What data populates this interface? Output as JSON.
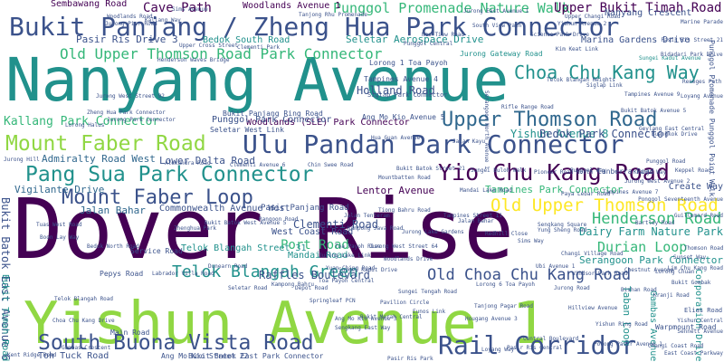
{
  "palette": {
    "purple": "#440154",
    "indigo": "#3b528b",
    "slate": "#31688e",
    "teal": "#21918c",
    "green": "#35b779",
    "lime": "#90d743",
    "yellow": "#fde725"
  },
  "words": [
    {
      "text": "Dover Rise",
      "color": "purple"
    },
    {
      "text": "Nanyang Avenue",
      "color": "teal"
    },
    {
      "text": "Yishun Avenue 1",
      "color": "lime"
    },
    {
      "text": "Bukit Panjang / Zheng Hua Park Connector",
      "color": "indigo"
    },
    {
      "text": "Ulu Pandan Park Connector",
      "color": "indigo"
    },
    {
      "text": "Pang Sua Park Connector",
      "color": "teal"
    },
    {
      "text": "Yio Chu Kang Road",
      "color": "purple"
    },
    {
      "text": "South Buona Vista Road",
      "color": "indigo"
    },
    {
      "text": "Rail Corridor",
      "color": "indigo"
    },
    {
      "text": "Mount Faber Road",
      "color": "lime"
    },
    {
      "text": "Upper Thomson Road",
      "color": "slate"
    },
    {
      "text": "Mount Faber Loop",
      "color": "indigo"
    },
    {
      "text": "Old Upper Thomson Road Park Connector",
      "color": "green"
    },
    {
      "text": "Old Upper Thomson Road",
      "color": "yellow"
    },
    {
      "text": "Choa Chu Kang Way",
      "color": "teal"
    },
    {
      "text": "Henderson Road",
      "color": "green"
    },
    {
      "text": "Telok Blangah Green",
      "color": "teal"
    },
    {
      "text": "Old Choa Chu Kang Road",
      "color": "indigo"
    },
    {
      "text": "Dairy Farm Nature Park",
      "color": "teal"
    },
    {
      "text": "Durian Loop",
      "color": "green"
    },
    {
      "text": "Kallang Park Connector",
      "color": "green"
    },
    {
      "text": "Cave Path",
      "color": "purple"
    },
    {
      "text": "Sembawang Road",
      "color": "purple"
    },
    {
      "text": "Punggol Promenade Nature Walk",
      "color": "green"
    },
    {
      "text": "Upper Bukit Timah Road",
      "color": "purple"
    },
    {
      "text": "Yishun Avenue 8",
      "color": "teal"
    },
    {
      "text": "Bedok Park Connector",
      "color": "indigo"
    },
    {
      "text": "Holland Road",
      "color": "indigo"
    },
    {
      "text": "Port Road",
      "color": "green"
    },
    {
      "text": "Clementi Road",
      "color": "indigo"
    },
    {
      "text": "Woodlands (SLE) Park Connector",
      "color": "purple"
    },
    {
      "text": "Mandai Road",
      "color": "teal"
    },
    {
      "text": "Raffles Boulevard",
      "color": "indigo"
    },
    {
      "text": "Toh Tuck Road",
      "color": "indigo"
    },
    {
      "text": "Jalan Bahar",
      "color": "slate"
    },
    {
      "text": "Vigilante Drive",
      "color": "slate"
    },
    {
      "text": "Admiralty Road West",
      "color": "slate"
    },
    {
      "text": "Lower Delta Road",
      "color": "indigo"
    },
    {
      "text": "Commonwealth Avenue West",
      "color": "indigo"
    },
    {
      "text": "Pasir Panjang Road",
      "color": "indigo"
    },
    {
      "text": "West Coast Road",
      "color": "indigo"
    },
    {
      "text": "Tampines Park Connector",
      "color": "green"
    },
    {
      "text": "Lentor Avenue",
      "color": "purple"
    },
    {
      "text": "Serangoon Park Connector",
      "color": "teal"
    },
    {
      "text": "Bukit Batok East Avenue 6",
      "color": "indigo"
    },
    {
      "text": "Punggol Park Connector",
      "color": "indigo"
    },
    {
      "text": "Woodlands Avenue 1",
      "color": "purple"
    },
    {
      "text": "Pasir Ris Drive 3",
      "color": "indigo"
    },
    {
      "text": "Bedok South Road",
      "color": "teal"
    },
    {
      "text": "Seletar Aerospace Drive",
      "color": "teal"
    },
    {
      "text": "Marina Gardens Drive",
      "color": "indigo"
    },
    {
      "text": "Nanyang Crescent",
      "color": "indigo"
    },
    {
      "text": "Lorong 1 Toa Payoh",
      "color": "indigo"
    },
    {
      "text": "Tampines Avenue 4",
      "color": "indigo"
    },
    {
      "text": "Siglap Park Connector",
      "color": "indigo"
    },
    {
      "text": "Jurong Gateway Road",
      "color": "teal"
    },
    {
      "text": "Bukit Panjang Ring Road",
      "color": "indigo"
    },
    {
      "text": "Ang Mo Kio Avenue 5",
      "color": "indigo"
    },
    {
      "text": "Seletar West Link",
      "color": "indigo"
    },
    {
      "text": "Create Way",
      "color": "indigo"
    },
    {
      "text": "Gambas Avenue",
      "color": "teal"
    },
    {
      "text": "Corporation Drive",
      "color": "teal"
    },
    {
      "text": "Taban Loop",
      "color": "teal"
    },
    {
      "text": "Bukit Batok East Park Connector",
      "color": "indigo"
    },
    {
      "text": "Ang Mo Kio Street 22",
      "color": "indigo"
    },
    {
      "text": "Bukit Timah Road",
      "color": "teal"
    },
    {
      "text": "Telok Blangah Street 31",
      "color": "teal"
    },
    {
      "text": "Service Road",
      "color": "indigo"
    },
    {
      "text": "Pepys Road",
      "color": "indigo"
    },
    {
      "text": "Main Road",
      "color": "indigo"
    },
    {
      "text": "Canberra Road",
      "color": "indigo"
    },
    {
      "text": "Hua Guan Avenue",
      "color": "indigo"
    },
    {
      "text": "Chin Swee Road",
      "color": "indigo"
    },
    {
      "text": "Kallang Way",
      "color": "indigo"
    },
    {
      "text": "Jurong West Street 92",
      "color": "indigo"
    },
    {
      "text": "Jurong Park Connector",
      "color": "indigo"
    },
    {
      "text": "Buangkok Drive",
      "color": "indigo"
    },
    {
      "text": "Sims Avenue",
      "color": "indigo"
    },
    {
      "text": "Tanjong Rhu Promenade",
      "color": "indigo"
    },
    {
      "text": "Science Park Drive",
      "color": "indigo"
    },
    {
      "text": "Sungei Kadut Avenue",
      "color": "teal"
    },
    {
      "text": "Punggol Central",
      "color": "indigo"
    },
    {
      "text": "South View Path",
      "color": "indigo"
    },
    {
      "text": "Mandai Lake Road",
      "color": "indigo"
    },
    {
      "text": "Ponggol Seventeenth Avenue",
      "color": "indigo"
    },
    {
      "text": "Sunset Way",
      "color": "indigo"
    },
    {
      "text": "Bukit Batok West Avenue 5",
      "color": "indigo"
    },
    {
      "text": "Reneges Path",
      "color": "indigo"
    },
    {
      "text": "Lorong Chuan",
      "color": "indigo"
    },
    {
      "text": "Kampong Java Road",
      "color": "indigo"
    },
    {
      "text": "Tampines Street 11",
      "color": "indigo"
    },
    {
      "text": "Clementi Avenue 6",
      "color": "indigo"
    },
    {
      "text": "Woodlands Drive",
      "color": "indigo"
    },
    {
      "text": "Pasir Ris Park",
      "color": "indigo"
    },
    {
      "text": "Central Boulevard",
      "color": "indigo"
    },
    {
      "text": "Sungei Kadut Drive",
      "color": "indigo"
    },
    {
      "text": "Jurong Lake Link",
      "color": "indigo"
    },
    {
      "text": "Yuan Ching Road",
      "color": "indigo"
    },
    {
      "text": "Toa Payoh Rise",
      "color": "indigo"
    },
    {
      "text": "Depot Road",
      "color": "indigo"
    },
    {
      "text": "Springleaf PCN",
      "color": "indigo"
    },
    {
      "text": "Windsor Park Road",
      "color": "indigo"
    },
    {
      "text": "Rangoon Road",
      "color": "indigo"
    },
    {
      "text": "Zhenghua Park",
      "color": "indigo"
    },
    {
      "text": "Telok Blangah Heights",
      "color": "indigo"
    },
    {
      "text": "Sungei Tengah Road",
      "color": "indigo"
    },
    {
      "text": "Pavilion Circle",
      "color": "indigo"
    },
    {
      "text": "Siglap Link",
      "color": "indigo"
    },
    {
      "text": "Bishan Road",
      "color": "indigo"
    },
    {
      "text": "Sengkang Square",
      "color": "indigo"
    },
    {
      "text": "Ubi Avenue 1",
      "color": "indigo"
    },
    {
      "text": "Sims Way",
      "color": "indigo"
    },
    {
      "text": "Jurong Pier Road",
      "color": "indigo"
    },
    {
      "text": "Yishun Ring Road",
      "color": "indigo"
    },
    {
      "text": "Serangoon North Avenue 1",
      "color": "indigo"
    },
    {
      "text": "Bukit Batok Street 21",
      "color": "indigo"
    },
    {
      "text": "Jurong Road",
      "color": "indigo"
    },
    {
      "text": "Loyang Avenue",
      "color": "indigo"
    },
    {
      "text": "Jalan Bahar",
      "color": "indigo"
    },
    {
      "text": "Tampines Avenue 7",
      "color": "indigo"
    },
    {
      "text": "Pasir Ris Street 21",
      "color": "indigo"
    },
    {
      "text": "Jurong West Avenue 2",
      "color": "indigo"
    },
    {
      "text": "Punggol Way",
      "color": "indigo"
    },
    {
      "text": "Lorong Halus",
      "color": "indigo"
    },
    {
      "text": "Changi Coast Road",
      "color": "indigo"
    },
    {
      "text": "Kim Keat Link",
      "color": "indigo"
    },
    {
      "text": "Clementi Park",
      "color": "indigo"
    },
    {
      "text": "Henderson Waves Bridge",
      "color": "indigo"
    },
    {
      "text": "Upper Cross Street",
      "color": "indigo"
    },
    {
      "text": "Woodlands Road",
      "color": "indigo"
    },
    {
      "text": "Zheng Hua Park Connector",
      "color": "indigo"
    },
    {
      "text": "Bukit Batok Avenue 5",
      "color": "indigo"
    },
    {
      "text": "Punggol Promenade Punggol Point Walk",
      "color": "indigo"
    },
    {
      "text": "Jalan Tenteram",
      "color": "indigo"
    },
    {
      "text": "Marine Parade",
      "color": "indigo"
    },
    {
      "text": "Chestnut Avenue",
      "color": "indigo"
    },
    {
      "text": "Ang Mo Kio Avenue 3",
      "color": "indigo"
    },
    {
      "text": "Telok Blangah Road",
      "color": "indigo"
    },
    {
      "text": "Kampong Bahru",
      "color": "indigo"
    },
    {
      "text": "Yishun Central",
      "color": "indigo"
    },
    {
      "text": "Seletar Road",
      "color": "indigo"
    },
    {
      "text": "Choa Chu Kang Drive",
      "color": "indigo"
    },
    {
      "text": "Gambas Crescent",
      "color": "indigo"
    },
    {
      "text": "Kranji Way",
      "color": "indigo"
    },
    {
      "text": "Tuas West Road",
      "color": "indigo"
    },
    {
      "text": "Pioneer Road North",
      "color": "indigo"
    },
    {
      "text": "Boon Lay Way",
      "color": "indigo"
    },
    {
      "text": "Tanjong Pagar Road",
      "color": "indigo"
    },
    {
      "text": "Yung Sheng Road",
      "color": "indigo"
    },
    {
      "text": "Hougang Avenue 3",
      "color": "indigo"
    },
    {
      "text": "Sengkang East Way",
      "color": "indigo"
    },
    {
      "text": "Lorong 6 Toa Payoh",
      "color": "indigo"
    },
    {
      "text": "Toa Payoh Central",
      "color": "indigo"
    },
    {
      "text": "Upper Changi Road",
      "color": "indigo"
    },
    {
      "text": "Jurong East Avenue 1",
      "color": "indigo"
    },
    {
      "text": "Kranji Road",
      "color": "indigo"
    },
    {
      "text": "Neo Tiew Road",
      "color": "indigo"
    },
    {
      "text": "Lim Chu Kang Road",
      "color": "indigo"
    },
    {
      "text": "Jurong Lake Gardens",
      "color": "indigo"
    },
    {
      "text": "Sungei Buloh Walk",
      "color": "indigo"
    },
    {
      "text": "Jalan Kayu",
      "color": "indigo"
    },
    {
      "text": "Punggol Road",
      "color": "indigo"
    },
    {
      "text": "Yishun Avenue 2",
      "color": "indigo"
    },
    {
      "text": "Jurong West Street 64",
      "color": "indigo"
    },
    {
      "text": "Tampines Avenue 9",
      "color": "indigo"
    },
    {
      "text": "Rifle Range Road",
      "color": "indigo"
    },
    {
      "text": "Dunearn Road",
      "color": "indigo"
    },
    {
      "text": "Thomson Road",
      "color": "indigo"
    },
    {
      "text": "Hillview Avenue",
      "color": "indigo"
    },
    {
      "text": "Bukit Gombak",
      "color": "indigo"
    },
    {
      "text": "Jurong Hill",
      "color": "indigo"
    },
    {
      "text": "Kent Ridge Road",
      "color": "indigo"
    },
    {
      "text": "Labrador Villa Road",
      "color": "indigo"
    },
    {
      "text": "Alexandra Road",
      "color": "indigo"
    },
    {
      "text": "Bukit Merah Central",
      "color": "indigo"
    },
    {
      "text": "Redhill Close",
      "color": "indigo"
    },
    {
      "text": "Tiong Bahru Road",
      "color": "indigo"
    },
    {
      "text": "Keppel Road",
      "color": "indigo"
    },
    {
      "text": "Bidadari Park Drive",
      "color": "indigo"
    },
    {
      "text": "Potong Pasir Avenue 1",
      "color": "indigo"
    },
    {
      "text": "Sennett Avenue",
      "color": "indigo"
    },
    {
      "text": "Bartley Road",
      "color": "indigo"
    },
    {
      "text": "Paya Lebar Road",
      "color": "indigo"
    },
    {
      "text": "Eunos Link",
      "color": "indigo"
    },
    {
      "text": "Geylang East Central",
      "color": "indigo"
    },
    {
      "text": "Guillemard Road",
      "color": "indigo"
    },
    {
      "text": "Mountbatten Road",
      "color": "indigo"
    },
    {
      "text": "East Coast Parkway",
      "color": "indigo"
    },
    {
      "text": "Bedok North Road",
      "color": "indigo"
    },
    {
      "text": "Changi Village Road",
      "color": "indigo"
    },
    {
      "text": "Loyang Way",
      "color": "indigo"
    },
    {
      "text": "Pasir Ris Central",
      "color": "indigo"
    },
    {
      "text": "Elias Road",
      "color": "indigo"
    },
    {
      "text": "Warpmount Road",
      "color": "indigo"
    }
  ]
}
